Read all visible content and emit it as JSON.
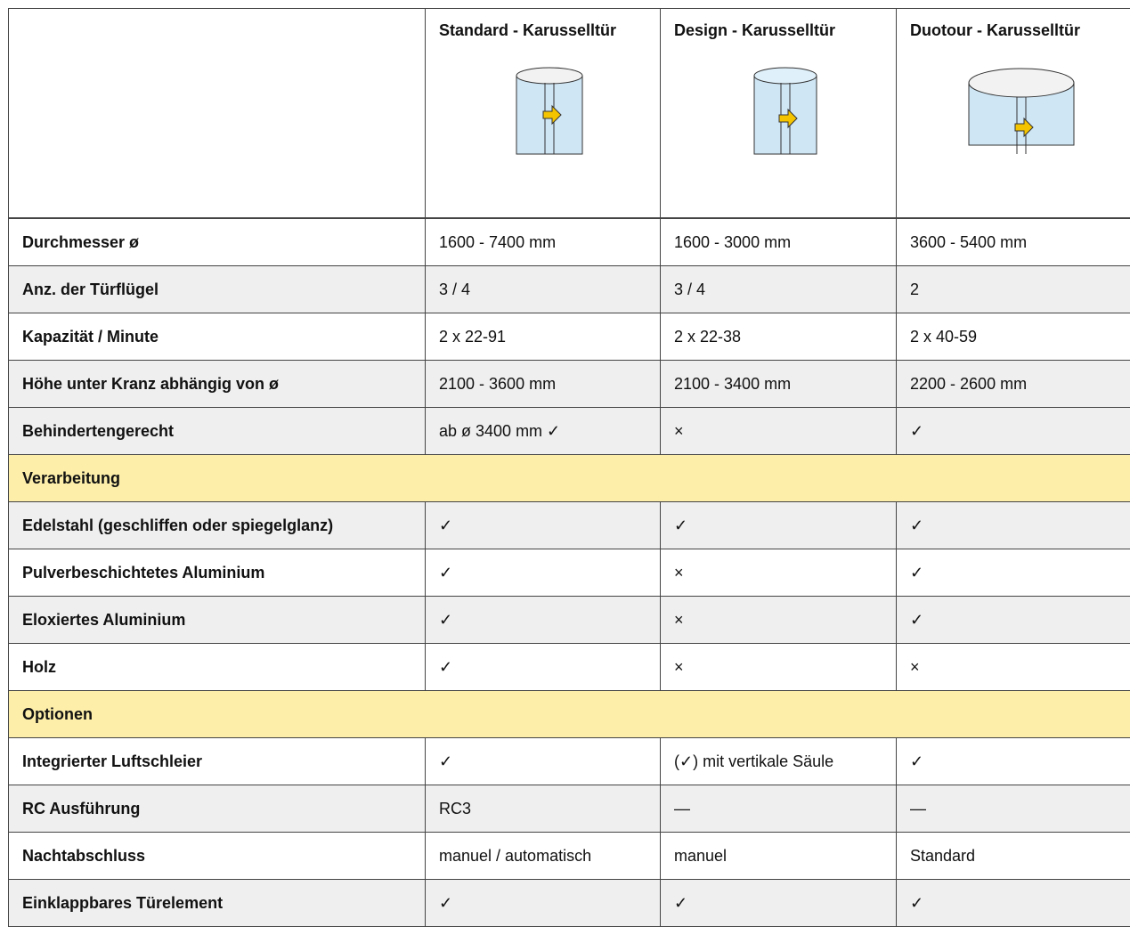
{
  "table": {
    "columns": [
      "Standard - Karusselltür",
      "Design - Karusselltür",
      "Duotour - Karusselltür"
    ],
    "rows": [
      [
        "Durchmesser ø",
        "1600 - 7400 mm",
        "1600 - 3000 mm",
        "3600 - 5400 mm"
      ],
      [
        "Anz. der Türflügel",
        "3 / 4",
        "3 / 4",
        "2"
      ],
      [
        "Kapazität / Minute",
        "2 x 22-91",
        "2 x 22-38",
        "2 x 40-59"
      ],
      [
        "Höhe unter Kranz abhängig von ø",
        "2100 - 3600 mm",
        "2100 - 3400 mm",
        "2200 - 2600 mm"
      ],
      [
        "Behindertengerecht",
        "ab ø 3400 mm ✓",
        "×",
        "✓"
      ],
      [
        "Verarbeitung"
      ],
      [
        "Edelstahl (geschliffen oder spiegelglanz)",
        "✓",
        "✓",
        "✓"
      ],
      [
        "Pulverbeschichtetes Aluminium",
        "✓",
        "×",
        "✓"
      ],
      [
        "Eloxiertes Aluminium",
        "✓",
        "×",
        "✓"
      ],
      [
        "Holz",
        "✓",
        "×",
        "×"
      ],
      [
        "Optionen"
      ],
      [
        "Integrierter Luftschleier",
        "✓",
        "(✓) mit vertikale Säule",
        "✓"
      ],
      [
        "RC Ausführung",
        "RC3",
        "—",
        "—"
      ],
      [
        "Nachtabschluss",
        "manuel / automatisch",
        "manuel",
        "Standard"
      ],
      [
        "Einklappbares Türelement",
        "✓",
        "✓",
        "✓"
      ]
    ]
  }
}
